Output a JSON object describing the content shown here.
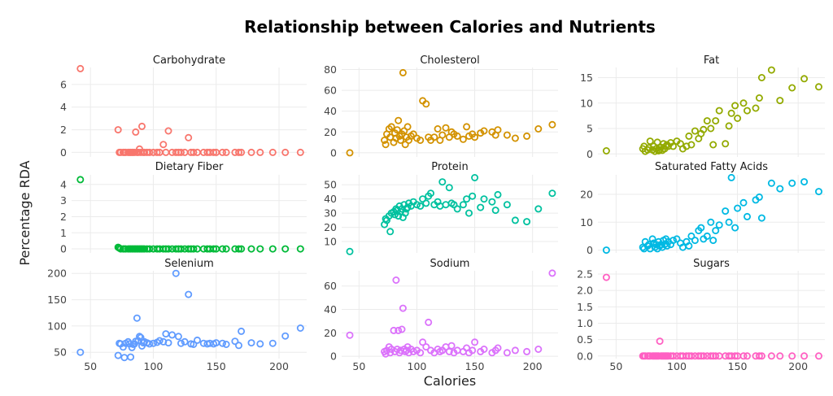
{
  "chart_data": {
    "type": "scatter",
    "title": "Relationship between Calories and Nutrients",
    "xlabel": "Calories",
    "ylabel": "Percentage RDA",
    "layout": "facet-grid 3x3, x shared per column, free y scales",
    "grid": true,
    "legend": "none",
    "xticks": [
      50,
      100,
      150,
      200
    ],
    "x": [
      42,
      72,
      73,
      74,
      76,
      77,
      78,
      80,
      81,
      82,
      83,
      84,
      85,
      86,
      87,
      88,
      89,
      90,
      91,
      92,
      93,
      95,
      97,
      100,
      103,
      105,
      108,
      110,
      112,
      115,
      118,
      120,
      122,
      125,
      128,
      130,
      132,
      135,
      140,
      143,
      145,
      148,
      150,
      155,
      158,
      165,
      168,
      170,
      178,
      185,
      195,
      205,
      217
    ],
    "panels": [
      {
        "name": "Carbohydrate",
        "color": "#F8766D",
        "yticks": [
          0,
          2,
          4,
          6
        ],
        "ylim": [
          -0.4,
          7.5
        ],
        "values": [
          7.4,
          2.0,
          0,
          0,
          0,
          0,
          0,
          0,
          0,
          0,
          0,
          0,
          0,
          1.8,
          0,
          0,
          0.3,
          0,
          2.3,
          0,
          0,
          0,
          0,
          0,
          0,
          0,
          0.7,
          0,
          1.9,
          0,
          0,
          0,
          0,
          0,
          1.3,
          0,
          0,
          0,
          0,
          0,
          0,
          0,
          0,
          0,
          0,
          0,
          0,
          0,
          0,
          0,
          0,
          0,
          0
        ]
      },
      {
        "name": "Cholesterol",
        "color": "#D39200",
        "yticks": [
          0,
          20,
          40,
          60,
          80
        ],
        "ylim": [
          -4,
          82
        ],
        "values": [
          0,
          12,
          8,
          18,
          23,
          15,
          25,
          10,
          19,
          14,
          22,
          31,
          16,
          12,
          18,
          77,
          21,
          8,
          15,
          25,
          12,
          16,
          18,
          14,
          12,
          50,
          47,
          15,
          12,
          15,
          23,
          12,
          17,
          24,
          15,
          20,
          18,
          16,
          13,
          25,
          16,
          18,
          15,
          19,
          21,
          20,
          17,
          22,
          17,
          14,
          16,
          23,
          27
        ]
      },
      {
        "name": "Fat",
        "color": "#93AA00",
        "yticks": [
          0,
          5,
          10,
          15
        ],
        "ylim": [
          -0.6,
          17
        ],
        "values": [
          0.6,
          1.0,
          1.5,
          0.5,
          0.8,
          1.2,
          2.5,
          0.8,
          1.5,
          0.5,
          1.0,
          2.3,
          0.6,
          0.8,
          1.3,
          0.7,
          2.0,
          1.0,
          1.5,
          1.8,
          1.5,
          2.2,
          1.5,
          2.5,
          2.0,
          1.0,
          1.5,
          3.5,
          1.8,
          4.5,
          3.0,
          4.0,
          4.8,
          6.5,
          5.0,
          1.8,
          6.5,
          8.5,
          2.0,
          5.5,
          8.0,
          9.5,
          7.0,
          10.0,
          8.5,
          9.0,
          11.0,
          15.0,
          16.5,
          10.5,
          13.0,
          14.8,
          13.2
        ]
      },
      {
        "name": "Dietary Fiber",
        "color": "#00BA38",
        "yticks": [
          0,
          1,
          2,
          3,
          4
        ],
        "ylim": [
          -0.25,
          4.6
        ],
        "values": [
          4.3,
          0.1,
          0.05,
          0,
          0,
          0,
          0,
          0,
          0,
          0,
          0,
          0,
          0,
          0,
          0,
          0,
          0,
          0,
          0,
          0,
          0,
          0,
          0,
          0,
          0,
          0,
          0,
          0,
          0,
          0,
          0,
          0,
          0,
          0,
          0,
          0,
          0,
          0,
          0,
          0,
          0,
          0,
          0,
          0,
          0,
          0,
          0,
          0,
          0,
          0,
          0,
          0,
          0
        ]
      },
      {
        "name": "Protein",
        "color": "#00C19F",
        "yticks": [
          10,
          20,
          30,
          40,
          50
        ],
        "ylim": [
          2,
          57
        ],
        "values": [
          3,
          22,
          26,
          25,
          28,
          17,
          30,
          31,
          29,
          33,
          32,
          28,
          35,
          31,
          33,
          27,
          36,
          30,
          33,
          34,
          37,
          35,
          38,
          36,
          35,
          40,
          37,
          42,
          44,
          36,
          38,
          35,
          52,
          36,
          48,
          37,
          36,
          33,
          36,
          40,
          30,
          42,
          55,
          34,
          40,
          38,
          32,
          43,
          36,
          25,
          24,
          33,
          44
        ]
      },
      {
        "name": "Saturated Fatty Acids",
        "color": "#00B9E3",
        "yticks": [
          0,
          10,
          20
        ],
        "ylim": [
          -1,
          27
        ],
        "values": [
          0,
          1,
          0.5,
          3,
          1.5,
          2,
          0.5,
          4,
          2.5,
          1,
          2,
          0.5,
          3,
          1.5,
          2,
          1,
          3.5,
          2,
          4,
          1.5,
          3,
          2,
          3.5,
          4,
          2.5,
          1,
          3,
          1.5,
          5,
          3.5,
          7,
          8,
          4,
          5,
          10,
          3.5,
          7,
          9,
          14,
          10,
          26,
          8,
          15,
          17,
          12,
          18,
          19,
          11.5,
          24,
          22,
          24,
          24.5,
          21
        ]
      },
      {
        "name": "Selenium",
        "color": "#619CFF",
        "yticks": [
          50,
          100,
          150,
          200
        ],
        "ylim": [
          38,
          205
        ],
        "values": [
          50,
          44,
          67,
          66,
          60,
          40,
          67,
          70,
          66,
          41,
          59,
          65,
          66,
          71,
          115,
          72,
          80,
          78,
          62,
          68,
          70,
          68,
          66,
          67,
          69,
          72,
          70,
          85,
          68,
          83,
          200,
          80,
          67,
          70,
          160,
          66,
          65,
          73,
          67,
          66,
          67,
          66,
          68,
          67,
          65,
          71,
          63,
          90,
          68,
          66,
          67,
          81,
          96
        ]
      },
      {
        "name": "Sodium",
        "color": "#DB72FB",
        "yticks": [
          0,
          20,
          40,
          60
        ],
        "ylim": [
          -2,
          73
        ],
        "values": [
          18,
          4,
          2,
          5,
          8,
          3,
          6,
          22,
          4,
          65,
          6,
          22,
          3,
          5,
          23,
          41,
          6,
          4,
          5,
          8,
          3,
          6,
          4,
          5,
          3,
          12,
          8,
          29,
          5,
          3,
          6,
          4,
          5,
          8,
          4,
          9,
          3,
          5,
          4,
          7,
          3,
          5,
          12,
          4,
          6,
          3,
          5,
          7,
          3,
          5,
          4,
          6,
          71
        ]
      },
      {
        "name": "Sugars",
        "color": "#FF61C3",
        "yticks": [
          0.0,
          0.5,
          1.0,
          1.5,
          2.0,
          2.5
        ],
        "ylim": [
          -0.08,
          2.6
        ],
        "values": [
          2.4,
          0,
          0,
          0,
          0,
          0,
          0,
          0,
          0,
          0,
          0,
          0,
          0,
          0.45,
          0,
          0,
          0,
          0,
          0,
          0,
          0,
          0,
          0,
          0,
          0,
          0,
          0,
          0,
          0,
          0,
          0,
          0,
          0,
          0,
          0,
          0,
          0,
          0,
          0,
          0,
          0,
          0,
          0,
          0,
          0,
          0,
          0,
          0,
          0,
          0,
          0,
          0,
          0
        ]
      }
    ]
  }
}
